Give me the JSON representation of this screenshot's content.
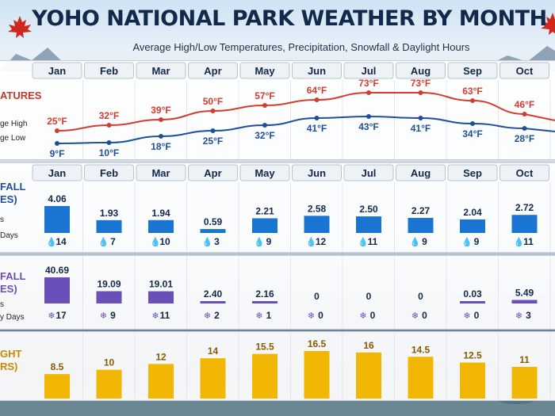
{
  "header": {
    "title": "YOHO NATIONAL PARK WEATHER BY MONTH",
    "subtitle": "Average High/Low Temperatures, Precipitation, Snowfall & Daylight Hours"
  },
  "months": [
    "Jan",
    "Feb",
    "Mar",
    "Apr",
    "May",
    "Jun",
    "Jul",
    "Aug",
    "Sep",
    "Oct"
  ],
  "side_labels": {
    "temp_title": "ATURES",
    "temp_high": "ge High",
    "temp_low": "ge Low",
    "rain_title_1": "FALL",
    "rain_title_2": "ES)",
    "rain_sub_1": "s",
    "rain_sub_2": "Days",
    "snow_title_1": "FALL",
    "snow_title_2": "ES)",
    "snow_sub_1": "s",
    "snow_sub_2": "y Days",
    "day_title_1": "GHT",
    "day_title_2": "RS)"
  },
  "colors": {
    "high": "#d63b2f",
    "low": "#1f4f9a",
    "rain": "#1a74d2",
    "snow": "#6a4fb8",
    "daylight": "#f2b705",
    "title": "#13294b"
  },
  "chart_data": [
    {
      "type": "line",
      "categories": [
        "Jan",
        "Feb",
        "Mar",
        "Apr",
        "May",
        "Jun",
        "Jul",
        "Aug",
        "Sep",
        "Oct"
      ],
      "series": [
        {
          "name": "Average High",
          "values": [
            25,
            32,
            39,
            50,
            57,
            64,
            73,
            73,
            63,
            46
          ],
          "labels": [
            "25°F",
            "32°F",
            "39°F",
            "50°F",
            "57°F",
            "64°F",
            "73°F",
            "73°F",
            "63°F",
            "46°F"
          ]
        },
        {
          "name": "Average Low",
          "values": [
            9,
            10,
            18,
            25,
            32,
            41,
            43,
            41,
            34,
            28
          ],
          "labels": [
            "9°F",
            "10°F",
            "18°F",
            "25°F",
            "32°F",
            "41°F",
            "43°F",
            "41°F",
            "34°F",
            "28°F"
          ]
        }
      ]
    },
    {
      "type": "bar",
      "categories": [
        "Jan",
        "Feb",
        "Mar",
        "Apr",
        "May",
        "Jun",
        "Jul",
        "Aug",
        "Sep",
        "Oct"
      ],
      "values": [
        4.06,
        1.93,
        1.94,
        0.59,
        2.21,
        2.58,
        2.5,
        2.27,
        2.04,
        2.72
      ],
      "value_labels": [
        "4.06",
        "1.93",
        "1.94",
        "0.59",
        "2.21",
        "2.58",
        "2.50",
        "2.27",
        "2.04",
        "2.72"
      ],
      "days": [
        "14",
        "7",
        "10",
        "3",
        "9",
        "12",
        "11",
        "9",
        "9",
        "11"
      ]
    },
    {
      "type": "bar",
      "categories": [
        "Jan",
        "Feb",
        "Mar",
        "Apr",
        "May",
        "Jun",
        "Jul",
        "Aug",
        "Sep",
        "Oct"
      ],
      "values": [
        40.69,
        19.09,
        19.01,
        2.4,
        2.16,
        0,
        0,
        0,
        0.03,
        5.49
      ],
      "value_labels": [
        "40.69",
        "19.09",
        "19.01",
        "2.40",
        "2.16",
        "0",
        "0",
        "0",
        "0.03",
        "5.49"
      ],
      "days": [
        "17",
        "9",
        "11",
        "2",
        "1",
        "0",
        "0",
        "0",
        "0",
        "3"
      ]
    },
    {
      "type": "bar",
      "categories": [
        "Jan",
        "Feb",
        "Mar",
        "Apr",
        "May",
        "Jun",
        "Jul",
        "Aug",
        "Sep",
        "Oct"
      ],
      "values": [
        8.5,
        10,
        12,
        14,
        15.5,
        16.5,
        16,
        14.5,
        12.5,
        11
      ],
      "value_labels": [
        "8.5",
        "10",
        "12",
        "14",
        "15.5",
        "16.5",
        "16",
        "14.5",
        "12.5",
        "11"
      ]
    }
  ]
}
